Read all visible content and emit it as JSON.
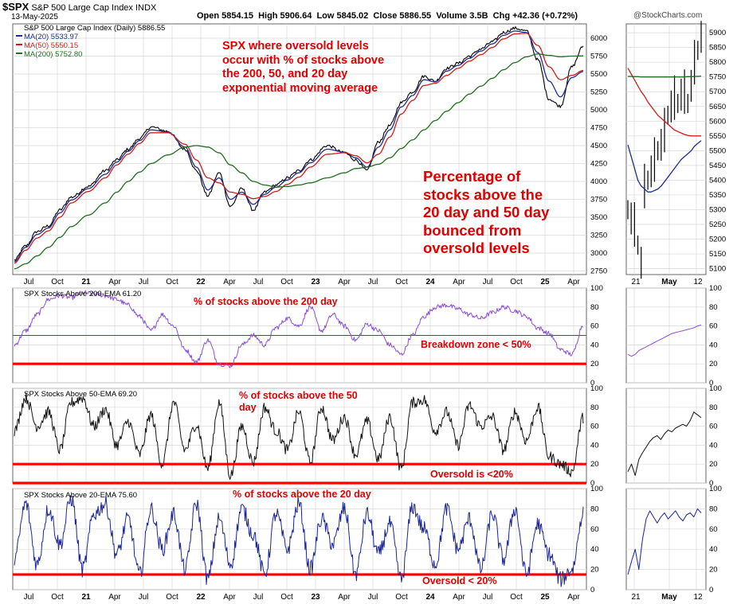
{
  "header": {
    "symbol": "$SPX",
    "name": "S&P 500 Large Cap Index",
    "exchange": "INDX",
    "date": "13-May-2025",
    "open": "Open 5854.15",
    "high": "High 5906.64",
    "low": "Low 5845.02",
    "close": "Close 5886.55",
    "volume": "Volume 3.5B",
    "chg": "Chg +42.36 (+0.72%)",
    "credit": "@StockCharts.com"
  },
  "annotations": {
    "main": "SPX where oversold levels\noccur with % of stocks above\nthe 200, 50, and 20 day\nexponential moving average",
    "percentage": "Percentage of\nstocks above the\n20 day and 50 day\nbounced from\noversold levels",
    "p200": "% of stocks above the 200 day",
    "breakdown": "Breakdown zone < 50%",
    "p50": "% of stocks above the 50\nday",
    "oversold50": "Oversold is <20%",
    "p20": "% of stocks above the 20 day",
    "oversold20": "Oversold < 20%"
  },
  "legends": {
    "price": "S&P 500 Large Cap Index (Daily) 5886.55",
    "ma20": "MA(20) 5533.97",
    "ma50": "MA(50) 5550.15",
    "ma200": "MA(200) 5752.80",
    "p200": "SPX Stocks Above 200-EMA 61.20",
    "p50": "SPX Stocks Above 50-EMA 69.20",
    "p20": "SPX Stocks Above 20-EMA 75.60"
  },
  "colors": {
    "price": "#000000",
    "ma20": "#1f2e8c",
    "ma50": "#d21c1c",
    "ma200": "#1e6e1e",
    "p200": "#8a4fd6",
    "p50": "#111111",
    "p20": "#1a2496",
    "threshold": "#ff0000",
    "grid": "#d8d8d8",
    "annotation": "#e00000"
  },
  "chart_data": [
    {
      "id": "price",
      "type": "line",
      "x_tick_labels": [
        "Jul",
        "Oct",
        "21",
        "Apr",
        "Jul",
        "Oct",
        "22",
        "Apr",
        "Jul",
        "Oct",
        "23",
        "Apr",
        "Jul",
        "Oct",
        "24",
        "Apr",
        "Jul",
        "Oct",
        "25",
        "Apr"
      ],
      "ylim": [
        2700,
        6200
      ],
      "y_ticks": [
        2750,
        3000,
        3250,
        3500,
        3750,
        4000,
        4250,
        4500,
        4750,
        5000,
        5250,
        5500,
        5750,
        6000
      ],
      "anchors_x": [
        0,
        2,
        4,
        6,
        8,
        10,
        13,
        16,
        18,
        20,
        22,
        24,
        27,
        30,
        32,
        34,
        36,
        38,
        40,
        42,
        44,
        46,
        48,
        50,
        52,
        55,
        58,
        60,
        62,
        64,
        66,
        68,
        70,
        72,
        74,
        76,
        78,
        80,
        82,
        84,
        86,
        88,
        90,
        92,
        94,
        96,
        98,
        100
      ],
      "series": [
        {
          "name": "S&P 500 Large Cap Index (Daily)",
          "values": [
            2900,
            3100,
            3300,
            3380,
            3600,
            3780,
            3930,
            4150,
            4300,
            4450,
            4600,
            4760,
            4700,
            4450,
            4150,
            3800,
            4120,
            3650,
            3900,
            3600,
            3850,
            3950,
            4050,
            4150,
            4300,
            4500,
            4400,
            4300,
            4150,
            4550,
            4780,
            5100,
            5250,
            5470,
            5400,
            5580,
            5650,
            5750,
            5850,
            5950,
            6080,
            6140,
            6100,
            5700,
            5150,
            5050,
            5600,
            5886
          ]
        },
        {
          "name": "MA(20)",
          "values": [
            2880,
            3080,
            3260,
            3350,
            3560,
            3740,
            3900,
            4100,
            4270,
            4420,
            4570,
            4720,
            4690,
            4480,
            4200,
            3880,
            4050,
            3750,
            3850,
            3680,
            3820,
            3920,
            4020,
            4120,
            4260,
            4450,
            4410,
            4330,
            4200,
            4480,
            4720,
            5040,
            5200,
            5420,
            5390,
            5540,
            5620,
            5720,
            5820,
            5920,
            6040,
            6100,
            6080,
            5800,
            5400,
            5180,
            5450,
            5534
          ]
        },
        {
          "name": "MA(50)",
          "values": [
            2860,
            3040,
            3210,
            3310,
            3500,
            3700,
            3860,
            4050,
            4230,
            4380,
            4530,
            4680,
            4680,
            4520,
            4300,
            4050,
            3980,
            3850,
            3820,
            3760,
            3790,
            3860,
            3960,
            4060,
            4200,
            4380,
            4400,
            4360,
            4260,
            4380,
            4620,
            4940,
            5130,
            5340,
            5370,
            5480,
            5580,
            5680,
            5770,
            5870,
            5990,
            6060,
            6070,
            5900,
            5600,
            5420,
            5480,
            5550
          ]
        },
        {
          "name": "MA(200)",
          "values": [
            2780,
            2850,
            2960,
            3080,
            3220,
            3370,
            3530,
            3700,
            3850,
            4000,
            4130,
            4250,
            4370,
            4480,
            4500,
            4480,
            4400,
            4230,
            4120,
            4000,
            3950,
            3920,
            3930,
            3950,
            3980,
            4050,
            4120,
            4180,
            4200,
            4240,
            4330,
            4460,
            4580,
            4720,
            4850,
            4980,
            5100,
            5220,
            5330,
            5440,
            5560,
            5660,
            5740,
            5780,
            5760,
            5740,
            5750,
            5753
          ]
        }
      ]
    },
    {
      "id": "p200",
      "type": "line",
      "ylim": [
        0,
        100
      ],
      "y_ticks": [
        0,
        20,
        40,
        60,
        80,
        100
      ],
      "thresholds": [
        50,
        20
      ],
      "anchors_x": [
        0,
        2,
        4,
        6,
        8,
        10,
        12,
        14,
        16,
        18,
        20,
        22,
        24,
        26,
        28,
        30,
        32,
        34,
        36,
        38,
        40,
        42,
        44,
        46,
        48,
        50,
        52,
        54,
        56,
        58,
        60,
        62,
        64,
        66,
        68,
        70,
        72,
        74,
        76,
        78,
        80,
        82,
        84,
        86,
        88,
        90,
        92,
        94,
        96,
        98,
        100
      ],
      "series": [
        {
          "name": "SPX Stocks Above 200-EMA",
          "values": [
            40,
            55,
            72,
            88,
            92,
            90,
            95,
            94,
            92,
            88,
            82,
            70,
            55,
            72,
            60,
            35,
            22,
            45,
            20,
            18,
            40,
            50,
            40,
            58,
            68,
            60,
            80,
            55,
            72,
            60,
            45,
            62,
            55,
            40,
            30,
            50,
            70,
            80,
            82,
            78,
            72,
            68,
            74,
            80,
            76,
            70,
            58,
            52,
            35,
            30,
            61
          ]
        }
      ]
    },
    {
      "id": "p50",
      "type": "line",
      "ylim": [
        0,
        100
      ],
      "y_ticks": [
        0,
        20,
        40,
        60,
        80,
        100
      ],
      "thresholds": [
        20,
        0
      ],
      "anchors_x": [
        0,
        2,
        4,
        6,
        8,
        10,
        12,
        14,
        16,
        18,
        20,
        22,
        24,
        26,
        28,
        30,
        32,
        34,
        36,
        38,
        40,
        42,
        44,
        46,
        48,
        50,
        52,
        54,
        56,
        58,
        60,
        62,
        64,
        66,
        68,
        70,
        72,
        74,
        76,
        78,
        80,
        82,
        84,
        86,
        88,
        90,
        92,
        94,
        96,
        98,
        100
      ],
      "series": [
        {
          "name": "SPX Stocks Above 50-EMA",
          "values": [
            55,
            90,
            60,
            75,
            35,
            85,
            90,
            60,
            78,
            40,
            65,
            30,
            72,
            20,
            85,
            35,
            62,
            15,
            85,
            8,
            60,
            22,
            80,
            55,
            35,
            75,
            22,
            80,
            45,
            70,
            30,
            65,
            25,
            70,
            15,
            85,
            88,
            55,
            75,
            40,
            82,
            60,
            70,
            35,
            75,
            45,
            80,
            28,
            20,
            12,
            69
          ]
        }
      ]
    },
    {
      "id": "p20",
      "type": "line",
      "ylim": [
        0,
        100
      ],
      "y_ticks": [
        0,
        20,
        40,
        60,
        80,
        100
      ],
      "thresholds": [
        15
      ],
      "anchors_x": [
        0,
        2,
        4,
        6,
        8,
        10,
        12,
        14,
        16,
        18,
        20,
        22,
        24,
        26,
        28,
        30,
        32,
        34,
        36,
        38,
        40,
        42,
        44,
        46,
        48,
        50,
        52,
        54,
        56,
        58,
        60,
        62,
        64,
        66,
        68,
        70,
        72,
        74,
        76,
        78,
        80,
        82,
        84,
        86,
        88,
        90,
        92,
        94,
        96,
        98,
        100
      ],
      "series": [
        {
          "name": "SPX Stocks Above 20-EMA",
          "values": [
            30,
            85,
            25,
            80,
            45,
            90,
            20,
            75,
            85,
            35,
            70,
            15,
            80,
            40,
            75,
            20,
            85,
            10,
            70,
            25,
            80,
            55,
            15,
            75,
            40,
            85,
            20,
            70,
            45,
            80,
            15,
            75,
            35,
            65,
            10,
            82,
            60,
            25,
            80,
            40,
            70,
            20,
            75,
            30,
            80,
            15,
            65,
            35,
            10,
            20,
            76
          ]
        }
      ]
    },
    {
      "id": "zoom-price",
      "type": "line",
      "x_tick_labels": [
        "21",
        "May",
        "12"
      ],
      "ylim": [
        5080,
        5930
      ],
      "y_ticks": [
        5100,
        5150,
        5200,
        5250,
        5300,
        5350,
        5400,
        5450,
        5500,
        5550,
        5600,
        5650,
        5700,
        5750,
        5800,
        5850,
        5900
      ],
      "series": [
        {
          "name": "S&P 500 Large Cap Index (Daily)",
          "values": [
            5300,
            5270,
            5250,
            5180,
            5120,
            5380,
            5400,
            5430,
            5470,
            5500,
            5520,
            5570,
            5620,
            5650,
            5680,
            5660,
            5690,
            5700,
            5660,
            5720,
            5800,
            5840,
            5886
          ]
        },
        {
          "name": "MA(20)",
          "values": [
            5520,
            5480,
            5440,
            5400,
            5380,
            5370,
            5360,
            5360,
            5365,
            5370,
            5380,
            5395,
            5410,
            5425,
            5440,
            5455,
            5470,
            5480,
            5490,
            5500,
            5515,
            5525,
            5534
          ]
        },
        {
          "name": "MA(50)",
          "values": [
            5780,
            5760,
            5740,
            5720,
            5700,
            5685,
            5665,
            5650,
            5635,
            5620,
            5610,
            5600,
            5590,
            5580,
            5570,
            5565,
            5560,
            5555,
            5552,
            5550,
            5550,
            5550,
            5550
          ]
        },
        {
          "name": "MA(200)",
          "values": [
            5752,
            5752,
            5751,
            5751,
            5750,
            5750,
            5750,
            5750,
            5750,
            5750,
            5750,
            5750,
            5750,
            5750,
            5750,
            5750,
            5750,
            5750,
            5751,
            5751,
            5752,
            5752,
            5753
          ]
        }
      ]
    },
    {
      "id": "zoom-p200",
      "type": "line",
      "ylim": [
        0,
        100
      ],
      "y_ticks": [
        0,
        20,
        40,
        60,
        80,
        100
      ],
      "series": [
        {
          "name": "SPX Stocks Above 200-EMA",
          "values": [
            30,
            28,
            30,
            34,
            36,
            38,
            40,
            42,
            44,
            46,
            48,
            50,
            52,
            53,
            54,
            55,
            56,
            57,
            58,
            60,
            61
          ]
        }
      ]
    },
    {
      "id": "zoom-p50",
      "type": "line",
      "ylim": [
        0,
        100
      ],
      "y_ticks": [
        0,
        20,
        40,
        60,
        80,
        100
      ],
      "series": [
        {
          "name": "SPX Stocks Above 50-EMA",
          "values": [
            12,
            20,
            8,
            25,
            32,
            38,
            44,
            48,
            50,
            46,
            52,
            56,
            54,
            58,
            60,
            62,
            60,
            66,
            75,
            72,
            69
          ]
        }
      ]
    },
    {
      "id": "zoom-p20",
      "type": "line",
      "ylim": [
        0,
        100
      ],
      "y_ticks": [
        0,
        20,
        40,
        60,
        80,
        100
      ],
      "series": [
        {
          "name": "SPX Stocks Above 20-EMA",
          "values": [
            15,
            28,
            40,
            20,
            50,
            70,
            78,
            72,
            66,
            72,
            76,
            70,
            74,
            78,
            72,
            68,
            74,
            76,
            72,
            80,
            76
          ]
        }
      ]
    }
  ]
}
